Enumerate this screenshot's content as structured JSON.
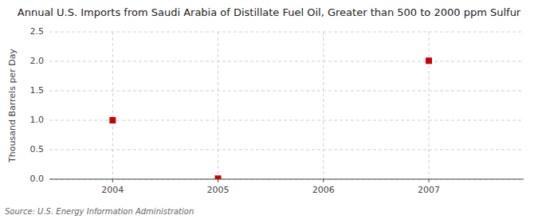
{
  "chart_data": {
    "type": "scatter",
    "title": "Annual U.S. Imports from Saudi Arabia of Distillate Fuel Oil, Greater than 500 to 2000 ppm Sulfur",
    "ylabel": "Thousand Barrels per Day",
    "source": "Source: U.S. Energy Information Administration",
    "x": [
      2004,
      2005,
      2007
    ],
    "values": [
      1.0,
      0.01,
      2.01
    ],
    "color": "#cc0000",
    "marker": "square",
    "xlim": [
      2003.4,
      2007.9
    ],
    "ylim": [
      0.0,
      2.5
    ],
    "xticks": [
      2004,
      2005,
      2006,
      2007
    ],
    "yticks": [
      {
        "value": 0.0,
        "label": "0.0"
      },
      0.5,
      {
        "value": 1.0,
        "label": "1.0"
      },
      1.5,
      {
        "value": 2.0,
        "label": "2.0"
      },
      2.5
    ],
    "grid": true
  }
}
